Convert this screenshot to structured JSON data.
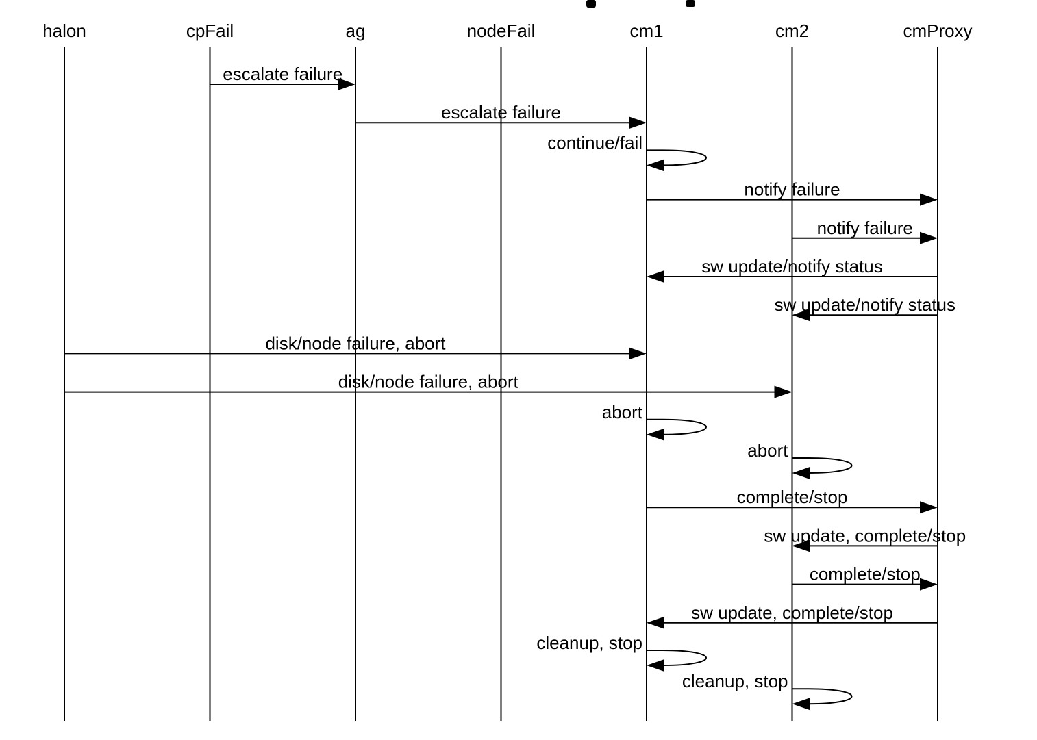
{
  "diagram": {
    "participants": [
      "halon",
      "cpFail",
      "ag",
      "nodeFail",
      "cm1",
      "cm2",
      "cmProxy"
    ],
    "messages": [
      {
        "from": "cpFail",
        "to": "ag",
        "label": "escalate failure"
      },
      {
        "from": "ag",
        "to": "cm1",
        "label": "escalate failure"
      },
      {
        "from": "cm1",
        "to": "cm1",
        "label": "continue/fail"
      },
      {
        "from": "cm1",
        "to": "cmProxy",
        "label": "notify failure"
      },
      {
        "from": "cm2",
        "to": "cmProxy",
        "label": "notify failure"
      },
      {
        "from": "cmProxy",
        "to": "cm1",
        "label": "sw update/notify status"
      },
      {
        "from": "cmProxy",
        "to": "cm2",
        "label": "sw update/notify status"
      },
      {
        "from": "halon",
        "to": "cm1",
        "label": "disk/node failure, abort"
      },
      {
        "from": "halon",
        "to": "cm2",
        "label": "disk/node failure, abort"
      },
      {
        "from": "cm1",
        "to": "cm1",
        "label": "abort"
      },
      {
        "from": "cm2",
        "to": "cm2",
        "label": "abort"
      },
      {
        "from": "cm1",
        "to": "cmProxy",
        "label": "complete/stop"
      },
      {
        "from": "cmProxy",
        "to": "cm2",
        "label": "sw update, complete/stop"
      },
      {
        "from": "cm2",
        "to": "cmProxy",
        "label": "complete/stop"
      },
      {
        "from": "cmProxy",
        "to": "cm1",
        "label": "sw update, complete/stop"
      },
      {
        "from": "cm1",
        "to": "cm1",
        "label": "cleanup, stop"
      },
      {
        "from": "cm2",
        "to": "cm2",
        "label": "cleanup, stop"
      }
    ]
  }
}
